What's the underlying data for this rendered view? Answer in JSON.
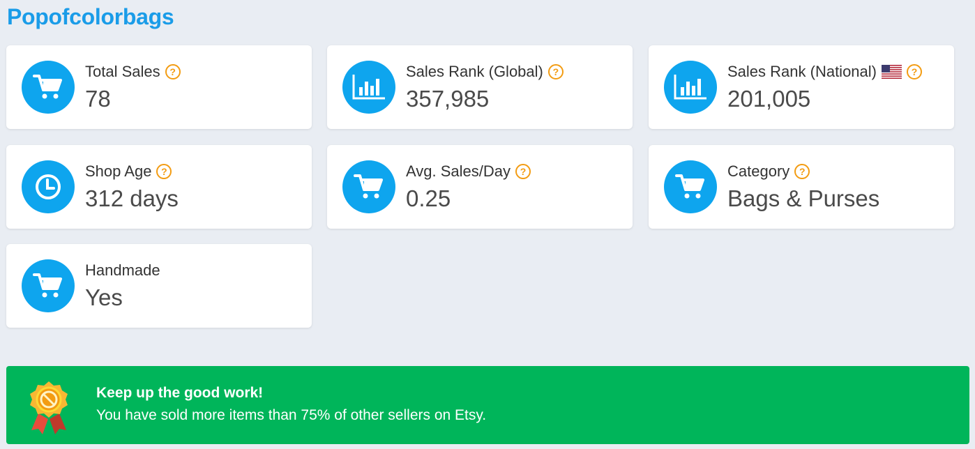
{
  "shop": {
    "name": "Popofcolorbags"
  },
  "stats": {
    "total_sales": {
      "label": "Total Sales",
      "value": "78",
      "icon": "cart-icon"
    },
    "sales_rank_global": {
      "label": "Sales Rank (Global)",
      "value": "357,985",
      "icon": "bar-chart-icon"
    },
    "sales_rank_national": {
      "label": "Sales Rank (National)",
      "value": "201,005",
      "icon": "bar-chart-icon",
      "flag": "us-flag-icon"
    },
    "shop_age": {
      "label": "Shop Age",
      "value": "312 days",
      "icon": "clock-icon"
    },
    "avg_sales_day": {
      "label": "Avg. Sales/Day",
      "value": "0.25",
      "icon": "cart-icon"
    },
    "category": {
      "label": "Category",
      "value": "Bags & Purses",
      "icon": "cart-icon"
    },
    "handmade": {
      "label": "Handmade",
      "value": "Yes",
      "icon": "cart-icon"
    }
  },
  "help_glyph": "?",
  "banner": {
    "title": "Keep up the good work!",
    "text": "You have sold more items than 75% of other sellers on Etsy.",
    "icon": "medal-icon"
  },
  "colors": {
    "brand": "#1a9ce8",
    "icon_bg": "#0ea5ee",
    "help": "#f39c12",
    "banner_bg": "#00b55a",
    "page_bg": "#e9edf3"
  }
}
